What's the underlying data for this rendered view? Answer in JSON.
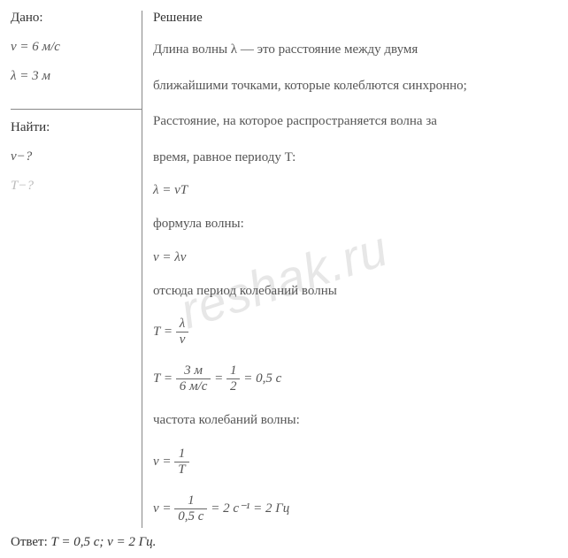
{
  "given": {
    "label": "Дано:",
    "items": [
      {
        "symbol": "v",
        "value": "= 6 м/с"
      },
      {
        "symbol": "λ",
        "value": "= 3 м"
      }
    ]
  },
  "find": {
    "label": "Найти:",
    "items": [
      {
        "symbol": "ν",
        "suffix": "−?"
      },
      {
        "symbol": "T",
        "suffix": "−?",
        "faded": true
      }
    ]
  },
  "solution": {
    "label": "Решение",
    "lines": [
      "Длина волны  λ  — это расстояние между двумя",
      "ближайшими точками, которые колеблются синхронно;",
      "Расстояние, на которое распространяется волна за",
      "время, равное периоду T:"
    ],
    "formula1": "λ  =  vT",
    "lines2": [
      "формула волны:"
    ],
    "formula2": "v =  λν",
    "lines3": [
      "отсюда период колебаний волны"
    ],
    "formula3": {
      "lhs": "T = ",
      "num": "λ",
      "den": "v"
    },
    "formula4": {
      "lhs": "T = ",
      "num1": "3 м",
      "den1": "6 м/с",
      "mid": " = ",
      "num2": "1",
      "den2": "2",
      "end": " = 0,5 с"
    },
    "lines4": [
      "частота колебаний волны:"
    ],
    "formula5": {
      "lhs": "ν = ",
      "num": "1",
      "den": "T"
    },
    "formula6": {
      "lhs": "ν = ",
      "num": "1",
      "den": "0,5 с",
      "end": " = 2 с⁻¹ = 2 Гц"
    }
  },
  "answer": {
    "label": "Ответ: ",
    "values": "T = 0,5 с;  ν = 2 Гц."
  },
  "watermark": "reshak.ru"
}
